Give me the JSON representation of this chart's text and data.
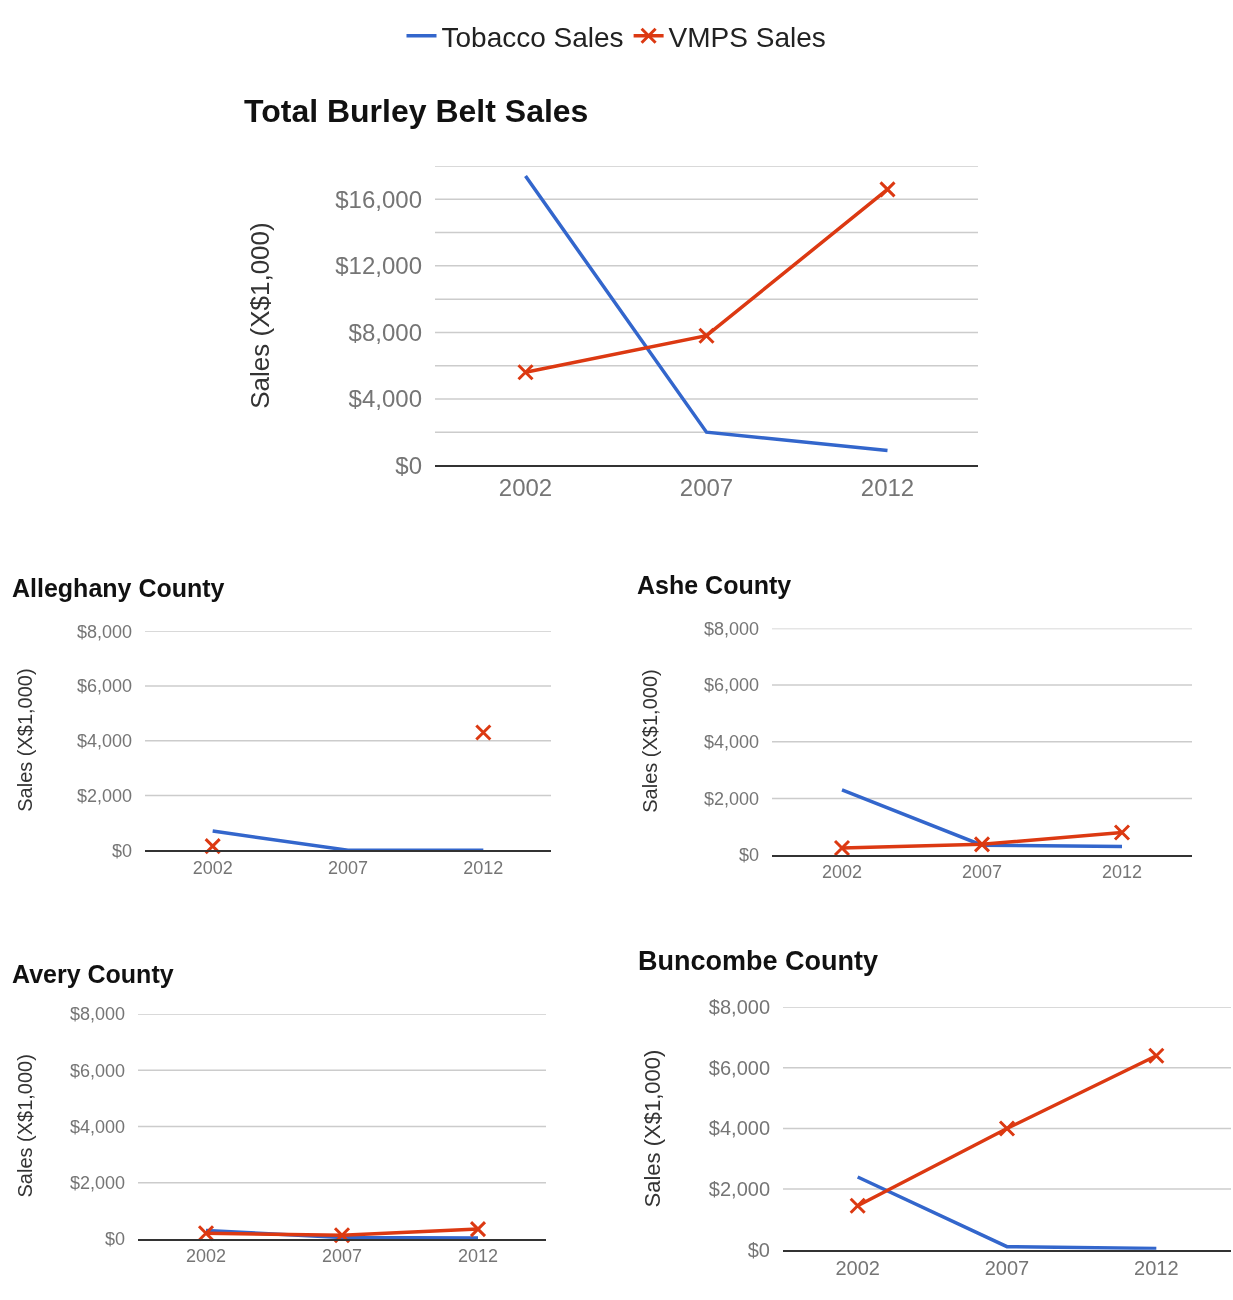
{
  "chart_data": [
    {
      "type": "line",
      "title": "Total Burley Belt Sales",
      "ylabel": "Sales (X$1,000)",
      "categories": [
        "2002",
        "2007",
        "2012"
      ],
      "grid": true,
      "legend": "top",
      "series": [
        {
          "name": "Tobacco Sales",
          "color": "#3366cc",
          "marker": "none",
          "values": [
            17400,
            2000,
            900
          ]
        },
        {
          "name": "VMPS Sales",
          "color": "#dc3912",
          "marker": "cross",
          "values": [
            5600,
            7800,
            16600
          ]
        }
      ],
      "ylim": [
        0,
        18000
      ],
      "yticks": [
        {
          "value": 0,
          "label": "$0"
        },
        {
          "value": 2000,
          "label": null
        },
        {
          "value": 4000,
          "label": "$4,000"
        },
        {
          "value": 6000,
          "label": null
        },
        {
          "value": 8000,
          "label": "$8,000"
        },
        {
          "value": 10000,
          "label": null
        },
        {
          "value": 12000,
          "label": "$12,000"
        },
        {
          "value": 14000,
          "label": null
        },
        {
          "value": 16000,
          "label": "$16,000"
        },
        {
          "value": 18000,
          "label": null
        }
      ]
    },
    {
      "type": "line",
      "title": "Alleghany County",
      "ylabel": "Sales (X$1,000)",
      "categories": [
        "2002",
        "2007",
        "2012"
      ],
      "grid": true,
      "legend": false,
      "series": [
        {
          "color": "#3366cc",
          "marker": "none",
          "values": [
            700,
            0,
            0
          ]
        },
        {
          "color": "#dc3912",
          "marker": "cross",
          "values": [
            150,
            null,
            4300
          ]
        }
      ],
      "ylim": [
        0,
        8000
      ],
      "yticks": [
        {
          "value": 0,
          "label": "$0"
        },
        {
          "value": 2000,
          "label": "$2,000"
        },
        {
          "value": 4000,
          "label": "$4,000"
        },
        {
          "value": 6000,
          "label": "$6,000"
        },
        {
          "value": 8000,
          "label": "$8,000"
        }
      ]
    },
    {
      "type": "line",
      "title": "Ashe County",
      "ylabel": "Sales (X$1,000)",
      "categories": [
        "2002",
        "2007",
        "2012"
      ],
      "grid": true,
      "legend": false,
      "series": [
        {
          "color": "#3366cc",
          "marker": "none",
          "values": [
            2300,
            350,
            300
          ]
        },
        {
          "color": "#dc3912",
          "marker": "cross",
          "values": [
            250,
            380,
            800
          ]
        }
      ],
      "ylim": [
        0,
        8000
      ],
      "yticks": [
        {
          "value": 0,
          "label": "$0"
        },
        {
          "value": 2000,
          "label": "$2,000"
        },
        {
          "value": 4000,
          "label": "$4,000"
        },
        {
          "value": 6000,
          "label": "$6,000"
        },
        {
          "value": 8000,
          "label": "$8,000"
        }
      ]
    },
    {
      "type": "line",
      "title": "Avery County",
      "ylabel": "Sales (X$1,000)",
      "categories": [
        "2002",
        "2007",
        "2012"
      ],
      "grid": true,
      "legend": false,
      "series": [
        {
          "color": "#3366cc",
          "marker": "none",
          "values": [
            300,
            50,
            30
          ]
        },
        {
          "color": "#dc3912",
          "marker": "cross",
          "values": [
            200,
            130,
            350
          ]
        }
      ],
      "ylim": [
        0,
        8000
      ],
      "yticks": [
        {
          "value": 0,
          "label": "$0"
        },
        {
          "value": 2000,
          "label": "$2,000"
        },
        {
          "value": 4000,
          "label": "$4,000"
        },
        {
          "value": 6000,
          "label": "$6,000"
        },
        {
          "value": 8000,
          "label": "$8,000"
        }
      ]
    },
    {
      "type": "line",
      "title": "Buncombe County",
      "ylabel": "Sales (X$1,000)",
      "categories": [
        "2002",
        "2007",
        "2012"
      ],
      "grid": true,
      "legend": false,
      "series": [
        {
          "color": "#3366cc",
          "marker": "none",
          "values": [
            2400,
            100,
            40
          ]
        },
        {
          "color": "#dc3912",
          "marker": "cross",
          "values": [
            1450,
            4000,
            6400
          ]
        }
      ],
      "ylim": [
        0,
        8000
      ],
      "yticks": [
        {
          "value": 0,
          "label": "$0"
        },
        {
          "value": 2000,
          "label": "$2,000"
        },
        {
          "value": 4000,
          "label": "$4,000"
        },
        {
          "value": 6000,
          "label": "$6,000"
        },
        {
          "value": 8000,
          "label": "$8,000"
        }
      ]
    }
  ]
}
